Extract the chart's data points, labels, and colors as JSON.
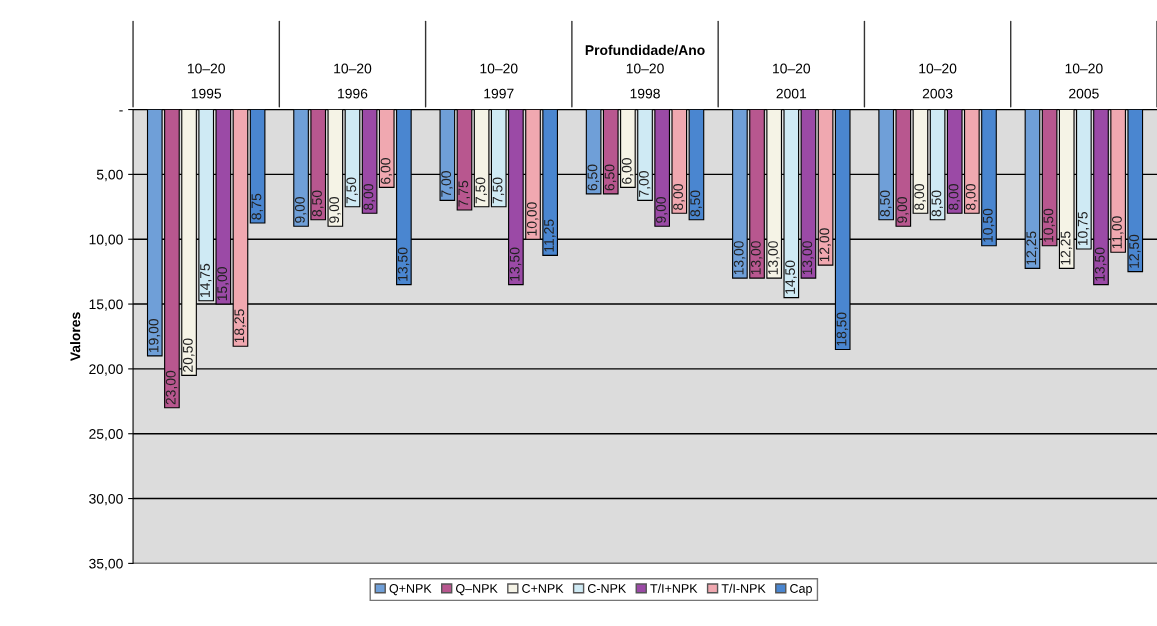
{
  "chart_data": {
    "type": "bar",
    "xlabel": "Profundidade/Ano",
    "ylabel": "Valores",
    "categories": [
      "10–20\n1995",
      "10–20\n1996",
      "10–20\n1997",
      "10–20\n1998",
      "10–20\n2001",
      "10–20\n2003",
      "10–20\n2005"
    ],
    "series": [
      {
        "name": "Q+NPK",
        "color": "#6f9fd8",
        "values": [
          19,
          9,
          7,
          6.5,
          13,
          8.5,
          12.25
        ],
        "value_labels": [
          "19,00",
          "9,00",
          "7,00",
          "6,50",
          "13,00",
          "8,50",
          "12,25"
        ]
      },
      {
        "name": "Q–NPK",
        "color": "#b8578f",
        "values": [
          23,
          8.5,
          7.75,
          6.5,
          13,
          9,
          10.5
        ],
        "value_labels": [
          "23,00",
          "8,50",
          "7,75",
          "6,50",
          "13,00",
          "9,00",
          "10,50"
        ]
      },
      {
        "name": "C+NPK",
        "color": "#f5f3e6",
        "values": [
          20.5,
          9,
          7.5,
          6,
          13,
          8,
          12.25
        ],
        "value_labels": [
          "20,50",
          "9,00",
          "7,50",
          "6,00",
          "13,00",
          "8,00",
          "12,25"
        ]
      },
      {
        "name": "C-NPK",
        "color": "#cfeaf4",
        "values": [
          14.75,
          7.5,
          7.5,
          7,
          14.5,
          8.5,
          10.75
        ],
        "value_labels": [
          "14,75",
          "7,50",
          "7,50",
          "7,00",
          "14,50",
          "8,50",
          "10,75"
        ]
      },
      {
        "name": "T/I+NPK",
        "color": "#9b4aa6",
        "values": [
          15,
          8,
          13.5,
          9,
          13,
          8,
          13.5
        ],
        "value_labels": [
          "15,00",
          "8,00",
          "13,50",
          "9,00",
          "13,00",
          "8,00",
          "13,50"
        ]
      },
      {
        "name": "T/I-NPK",
        "color": "#f0a8b0",
        "values": [
          18.25,
          6,
          10,
          8,
          12,
          8,
          11
        ],
        "value_labels": [
          "18,25",
          "6,00",
          "10,00",
          "8,00",
          "12,00",
          "8,00",
          "11,00"
        ]
      },
      {
        "name": "Cap",
        "color": "#4a86d0",
        "values": [
          8.75,
          13.5,
          11.25,
          8.5,
          18.5,
          10.5,
          12.5
        ],
        "value_labels": [
          "8,75",
          "13,50",
          "11,25",
          "8,50",
          "18,50",
          "10,50",
          "12,50"
        ]
      }
    ],
    "ylim": [
      35,
      0
    ],
    "yticks": [
      {
        "value": 0,
        "label": "-"
      },
      {
        "value": 5,
        "label": "5,00"
      },
      {
        "value": 10,
        "label": "10,00"
      },
      {
        "value": 15,
        "label": "15,00"
      },
      {
        "value": 20,
        "label": "20,00"
      },
      {
        "value": 25,
        "label": "25,00"
      },
      {
        "value": 30,
        "label": "30,00"
      },
      {
        "value": 35,
        "label": "35,00"
      }
    ],
    "grid": "y",
    "legend": "bottom"
  }
}
